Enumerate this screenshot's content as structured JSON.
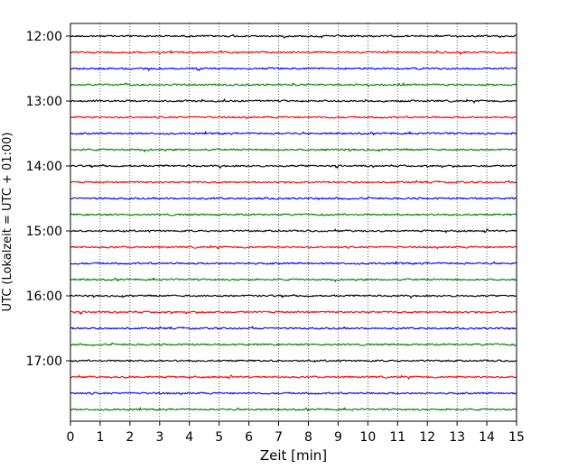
{
  "chart_data": {
    "type": "line",
    "title": "",
    "xlabel": "Zeit  [min]",
    "ylabel": "UTC (Lokalzeit = UTC + 01:00)",
    "xlim": [
      0,
      15
    ],
    "x_ticks": [
      "0",
      "1",
      "2",
      "3",
      "4",
      "5",
      "6",
      "7",
      "8",
      "9",
      "10",
      "11",
      "12",
      "13",
      "14",
      "15"
    ],
    "y_ticks": [
      "12:00",
      "13:00",
      "14:00",
      "15:00",
      "16:00",
      "17:00"
    ],
    "grid": "vertical dotted at each minute",
    "row_colors": [
      "#000000",
      "#ff0000",
      "#0000ff",
      "#008000"
    ],
    "series": [
      {
        "start": "12:00"
      },
      {
        "start": "12:15"
      },
      {
        "start": "12:30"
      },
      {
        "start": "12:45"
      },
      {
        "start": "13:00"
      },
      {
        "start": "13:15"
      },
      {
        "start": "13:30"
      },
      {
        "start": "13:45"
      },
      {
        "start": "14:00"
      },
      {
        "start": "14:15"
      },
      {
        "start": "14:30"
      },
      {
        "start": "14:45"
      },
      {
        "start": "15:00"
      },
      {
        "start": "15:15"
      },
      {
        "start": "15:30"
      },
      {
        "start": "15:45"
      },
      {
        "start": "16:00"
      },
      {
        "start": "16:15"
      },
      {
        "start": "16:30"
      },
      {
        "start": "16:45"
      },
      {
        "start": "17:00"
      },
      {
        "start": "17:15"
      },
      {
        "start": "17:30"
      },
      {
        "start": "17:45"
      }
    ]
  }
}
